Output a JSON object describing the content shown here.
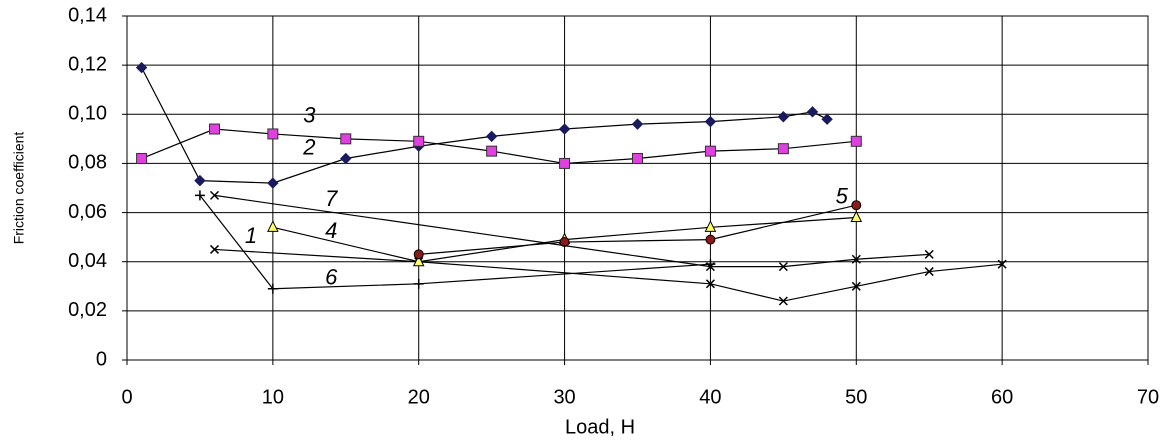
{
  "chart_data": {
    "type": "line",
    "x_label": "Load, H",
    "y_label": "Friction coefficient",
    "xlim": [
      0,
      70
    ],
    "xticks": [
      0,
      10,
      20,
      30,
      40,
      50,
      60,
      70
    ],
    "ylim": [
      0,
      0.14
    ],
    "yticks": [
      0,
      {
        "value": 0.02,
        "label": "0,02"
      },
      {
        "value": 0.04,
        "label": "0,04"
      },
      {
        "value": 0.06,
        "label": "0,06"
      },
      {
        "value": 0.08,
        "label": "0,08"
      },
      {
        "value": 0.1,
        "label": "0,10"
      },
      {
        "value": 0.12,
        "label": "0,12"
      },
      {
        "value": 0.14,
        "label": "0,14"
      }
    ],
    "grid": true,
    "series": [
      {
        "name": "1",
        "color": "#000000",
        "marker": "x",
        "x": [
          6,
          20,
          40,
          45,
          50,
          55,
          60
        ],
        "values": [
          0.045,
          0.04,
          0.031,
          0.024,
          0.03,
          0.036,
          0.039
        ]
      },
      {
        "name": "2",
        "color": "#1a1a5e",
        "marker": "diamond",
        "x": [
          1,
          5,
          10,
          15,
          20,
          25,
          30,
          35,
          40,
          45,
          47,
          48
        ],
        "values": [
          0.119,
          0.073,
          0.072,
          0.082,
          0.087,
          0.091,
          0.094,
          0.096,
          0.097,
          0.099,
          0.101,
          0.098
        ]
      },
      {
        "name": "3",
        "color": "#e040e0",
        "marker": "square",
        "x": [
          1,
          6,
          10,
          15,
          20,
          25,
          30,
          35,
          40,
          45,
          50
        ],
        "values": [
          0.082,
          0.094,
          0.092,
          0.09,
          0.089,
          0.085,
          0.08,
          0.082,
          0.085,
          0.086,
          0.089
        ]
      },
      {
        "name": "4",
        "color": "#ffff66",
        "marker": "triangle",
        "x": [
          10,
          20,
          30,
          40,
          50
        ],
        "values": [
          0.054,
          0.04,
          0.049,
          0.054,
          0.058
        ]
      },
      {
        "name": "5",
        "color": "#8b1a1a",
        "marker": "circle",
        "x": [
          20,
          30,
          40,
          50
        ],
        "values": [
          0.043,
          0.048,
          0.049,
          0.063
        ]
      },
      {
        "name": "6",
        "color": "#000000",
        "marker": "plus",
        "x": [
          5,
          10,
          20,
          40
        ],
        "values": [
          0.067,
          0.029,
          0.031,
          0.039
        ]
      },
      {
        "name": "7",
        "color": "#000000",
        "marker": "x",
        "x": [
          6,
          40,
          45,
          50,
          55
        ],
        "values": [
          0.067,
          0.038,
          0.038,
          0.041,
          0.043
        ]
      }
    ]
  }
}
